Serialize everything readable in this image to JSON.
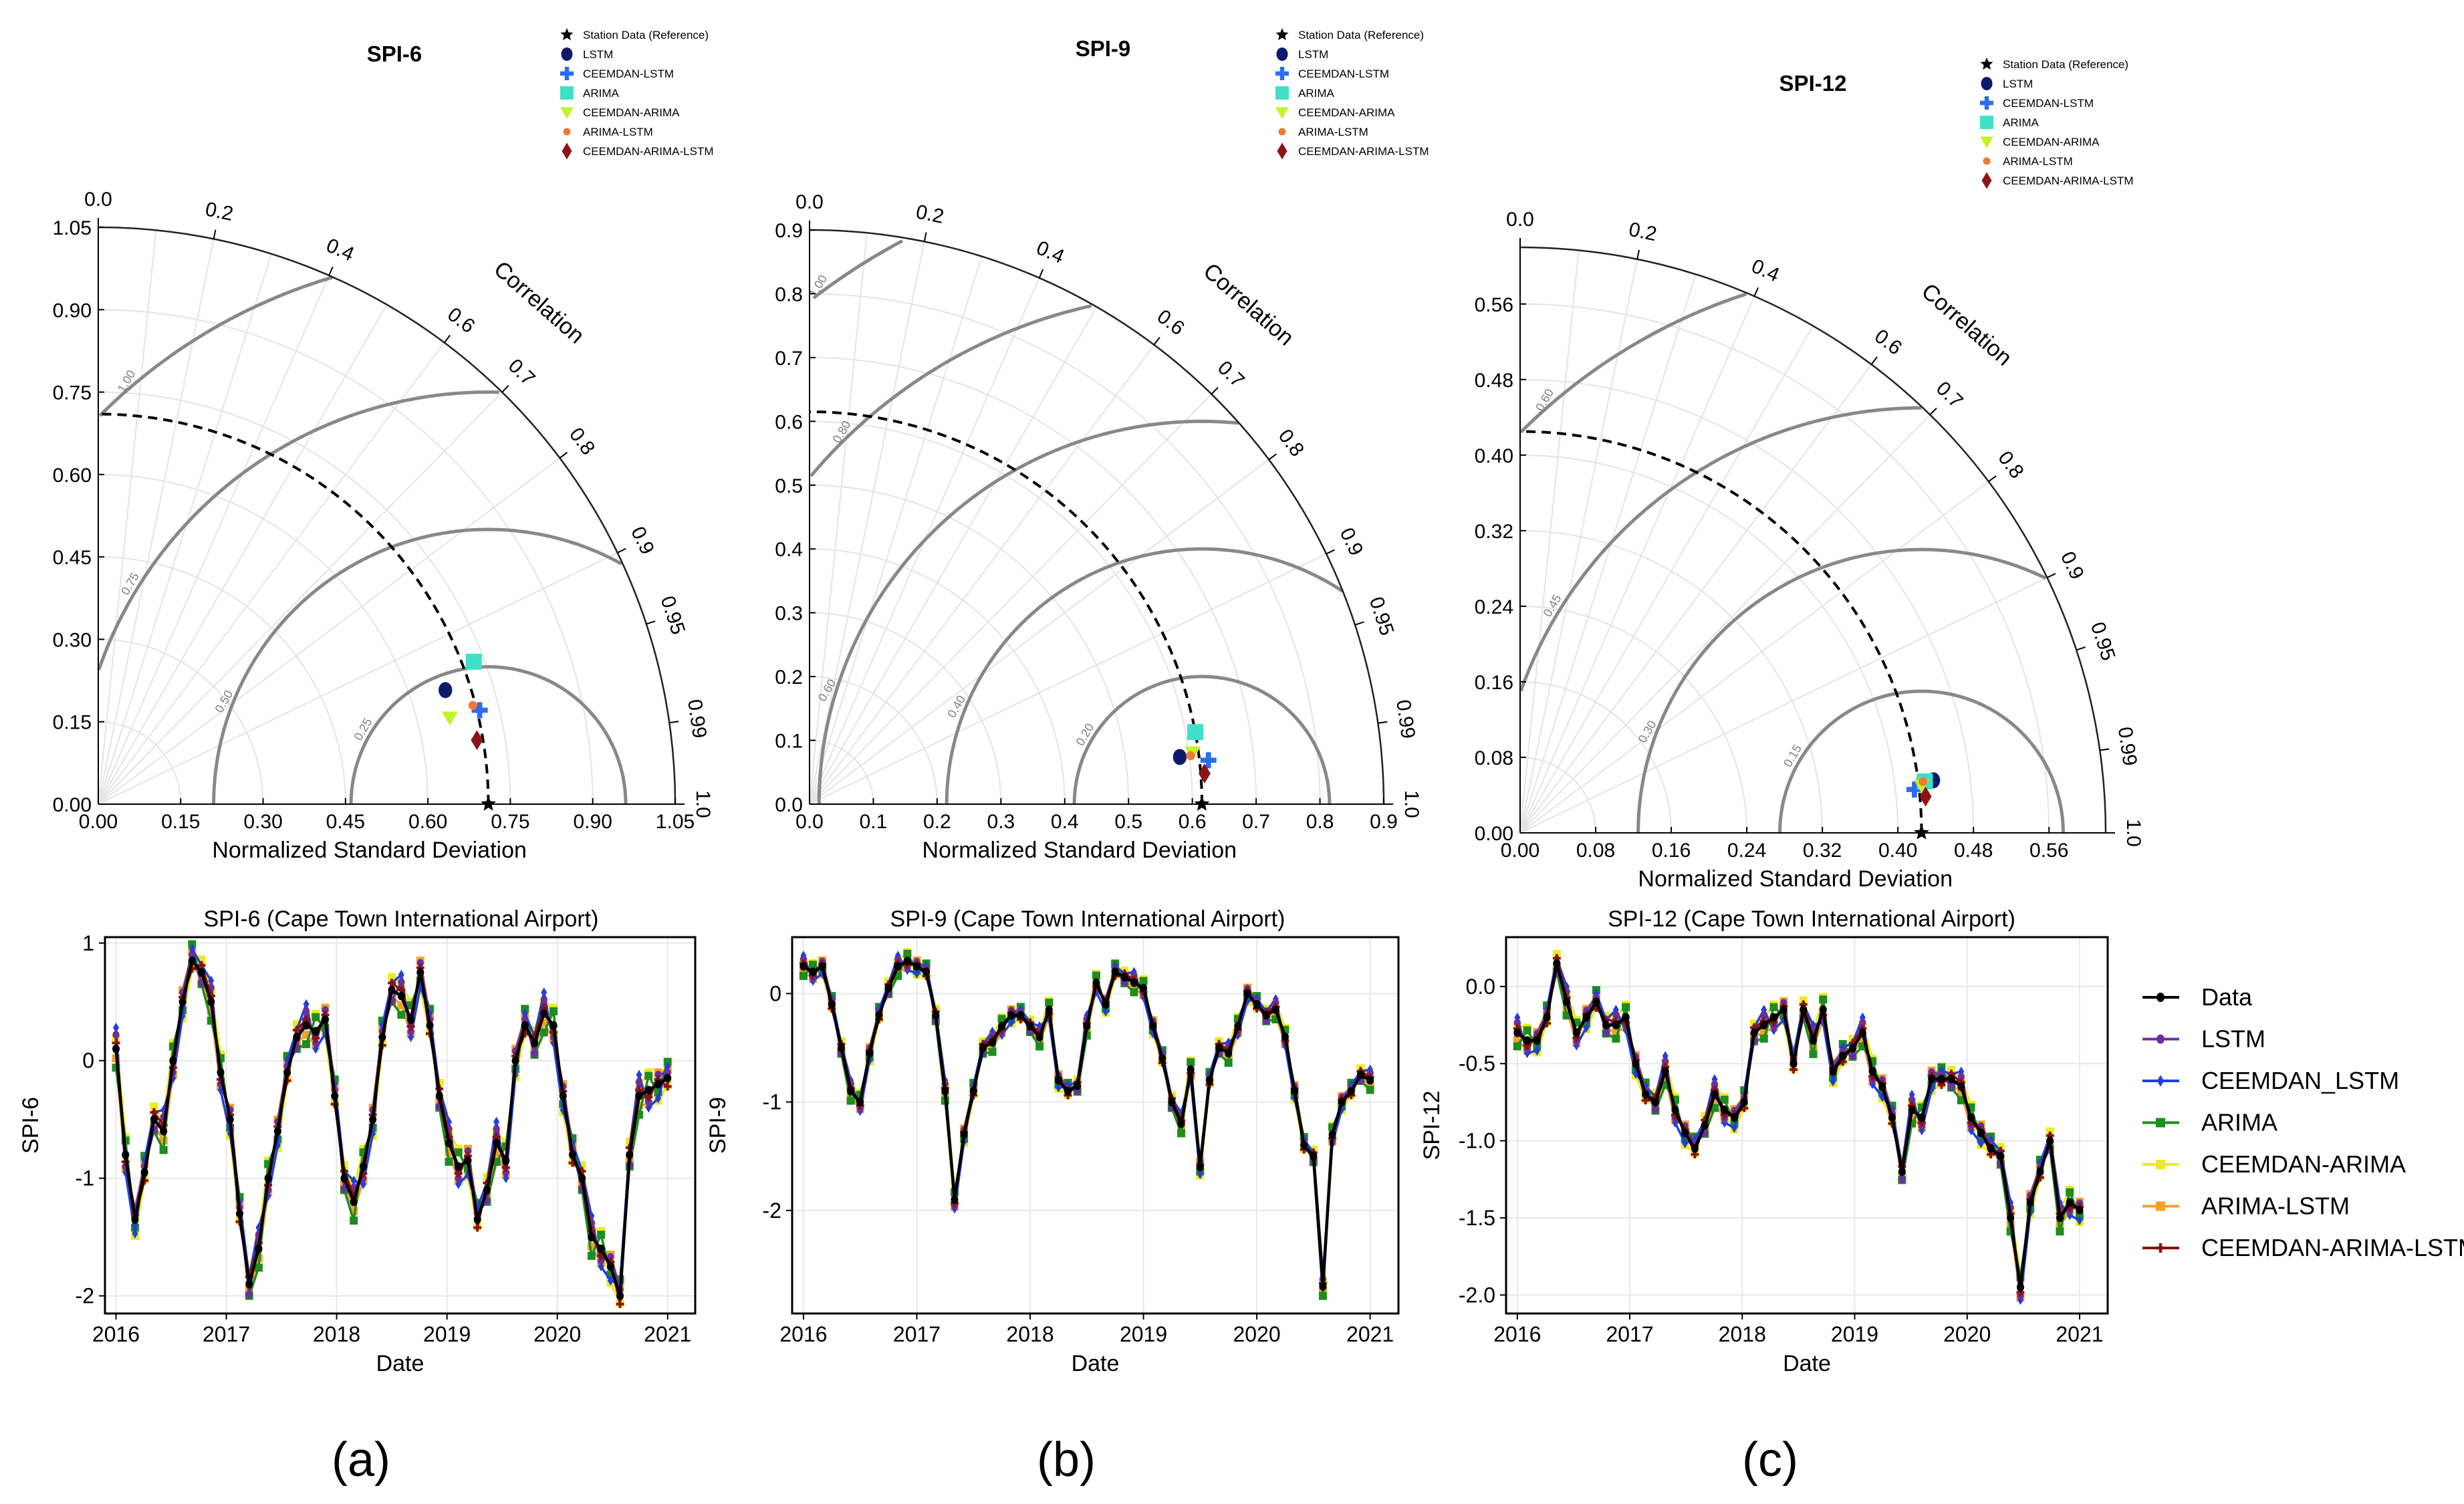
{
  "colors": {
    "Data": "#000000",
    "LSTM": "#6a2fa0",
    "CEEMDAN_LSTM": "#1f3fe0",
    "ARIMA": "#1e8c1e",
    "CEEMDAN-ARIMA": "#ecec1a",
    "ARIMA-LSTM": "#f2a22a",
    "CEEMDAN-ARIMA-LSTM": "#8b1010",
    "taylor": {
      "Station Data (Reference)": "#000000",
      "LSTM": "#0d1a6b",
      "CEEMDAN-LSTM": "#2b6cf0",
      "ARIMA": "#40e0c8",
      "CEEMDAN-ARIMA": "#c4f22a",
      "ARIMA-LSTM": "#f07a30",
      "CEEMDAN-ARIMA-LSTM": "#8b1515"
    }
  },
  "panel_labels": [
    "(a)",
    "(b)",
    "(c)"
  ],
  "taylor_legend": [
    "Station Data (Reference)",
    "LSTM",
    "CEEMDAN-LSTM",
    "ARIMA",
    "CEEMDAN-ARIMA",
    "ARIMA-LSTM",
    "CEEMDAN-ARIMA-LSTM"
  ],
  "ts_legend": [
    "Data",
    "LSTM",
    "CEEMDAN_LSTM",
    "ARIMA",
    "CEEMDAN-ARIMA",
    "ARIMA-LSTM",
    "CEEMDAN-ARIMA-LSTM"
  ],
  "chart_data": [
    {
      "type": "taylor",
      "title": "SPI-6",
      "xlabel": "Normalized Standard Deviation",
      "corr_label": "Correlation",
      "max_sd": 1.05,
      "ref_sd": 0.71,
      "sd_ticks": [
        0.0,
        0.15,
        0.3,
        0.45,
        0.6,
        0.75,
        0.9,
        1.05
      ],
      "sd_tick_labels": [
        "0.00",
        "0.15",
        "0.30",
        "0.45",
        "0.60",
        "0.75",
        "0.90",
        "1.05"
      ],
      "corr_ticks": [
        "0.0",
        "0.2",
        "0.4",
        "0.6",
        "0.7",
        "0.8",
        "0.9",
        "0.95",
        "0.99",
        "1.0"
      ],
      "rms_contours": [
        {
          "r": 0.25,
          "label": "0.25"
        },
        {
          "r": 0.5,
          "label": "0.50"
        },
        {
          "r": 0.75,
          "label": "0.75"
        },
        {
          "r": 1.0,
          "label": "1.00"
        }
      ],
      "points": [
        {
          "model": "Station Data (Reference)",
          "sd": 0.71,
          "corr": 1.0
        },
        {
          "model": "LSTM",
          "sd": 0.665,
          "corr": 0.95
        },
        {
          "model": "CEEMDAN-LSTM",
          "sd": 0.715,
          "corr": 0.971
        },
        {
          "model": "ARIMA",
          "sd": 0.731,
          "corr": 0.935
        },
        {
          "model": "CEEMDAN-ARIMA",
          "sd": 0.659,
          "corr": 0.971
        },
        {
          "model": "ARIMA-LSTM",
          "sd": 0.705,
          "corr": 0.967
        },
        {
          "model": "CEEMDAN-ARIMA-LSTM",
          "sd": 0.699,
          "corr": 0.986
        }
      ]
    },
    {
      "type": "taylor",
      "title": "SPI-9",
      "xlabel": "Normalized Standard Deviation",
      "corr_label": "Correlation",
      "max_sd": 0.9,
      "ref_sd": 0.615,
      "sd_ticks": [
        0.0,
        0.1,
        0.2,
        0.3,
        0.4,
        0.5,
        0.6,
        0.7,
        0.8,
        0.9
      ],
      "sd_tick_labels": [
        "0.0",
        "0.1",
        "0.2",
        "0.3",
        "0.4",
        "0.5",
        "0.6",
        "0.7",
        "0.8",
        "0.9"
      ],
      "corr_ticks": [
        "0.0",
        "0.2",
        "0.4",
        "0.6",
        "0.7",
        "0.8",
        "0.9",
        "0.95",
        "0.99",
        "1.0"
      ],
      "rms_contours": [
        {
          "r": 0.2,
          "label": "0.20"
        },
        {
          "r": 0.4,
          "label": "0.40"
        },
        {
          "r": 0.6,
          "label": "0.60"
        },
        {
          "r": 0.8,
          "label": "0.80"
        },
        {
          "r": 1.0,
          "label": "1.00"
        }
      ],
      "points": [
        {
          "model": "Station Data (Reference)",
          "sd": 0.615,
          "corr": 1.0
        },
        {
          "model": "LSTM",
          "sd": 0.585,
          "corr": 0.992
        },
        {
          "model": "CEEMDAN-LSTM",
          "sd": 0.629,
          "corr": 0.994
        },
        {
          "model": "ARIMA",
          "sd": 0.615,
          "corr": 0.983
        },
        {
          "model": "CEEMDAN-ARIMA",
          "sd": 0.606,
          "corr": 0.991
        },
        {
          "model": "ARIMA-LSTM",
          "sd": 0.602,
          "corr": 0.992
        },
        {
          "model": "CEEMDAN-ARIMA-LSTM",
          "sd": 0.621,
          "corr": 0.997
        }
      ]
    },
    {
      "type": "taylor",
      "title": "SPI-12",
      "xlabel": "Normalized Standard Deviation",
      "corr_label": "Correlation",
      "max_sd": 0.62,
      "ref_sd": 0.425,
      "sd_ticks": [
        0.0,
        0.08,
        0.16,
        0.24,
        0.32,
        0.4,
        0.48,
        0.56
      ],
      "sd_tick_labels": [
        "0.00",
        "0.08",
        "0.16",
        "0.24",
        "0.32",
        "0.40",
        "0.48",
        "0.56"
      ],
      "corr_ticks": [
        "0.0",
        "0.2",
        "0.4",
        "0.6",
        "0.7",
        "0.8",
        "0.9",
        "0.95",
        "0.99",
        "1.0"
      ],
      "rms_contours": [
        {
          "r": 0.15,
          "label": "0.15"
        },
        {
          "r": 0.3,
          "label": "0.30"
        },
        {
          "r": 0.45,
          "label": "0.45"
        },
        {
          "r": 0.6,
          "label": "0.60"
        }
      ],
      "points": [
        {
          "model": "Station Data (Reference)",
          "sd": 0.425,
          "corr": 1.0
        },
        {
          "model": "LSTM",
          "sd": 0.441,
          "corr": 0.992
        },
        {
          "model": "CEEMDAN-LSTM",
          "sd": 0.42,
          "corr": 0.994
        },
        {
          "model": "ARIMA",
          "sd": 0.432,
          "corr": 0.992
        },
        {
          "model": "CEEMDAN-ARIMA",
          "sd": 0.428,
          "corr": 0.993
        },
        {
          "model": "ARIMA-LSTM",
          "sd": 0.43,
          "corr": 0.992
        },
        {
          "model": "CEEMDAN-ARIMA-LSTM",
          "sd": 0.431,
          "corr": 0.996
        }
      ]
    },
    {
      "type": "line",
      "title": "SPI-6 (Cape Town International Airport)",
      "xlabel": "Date",
      "ylabel": "SPI-6",
      "xlim": [
        2015.9,
        2021.25
      ],
      "ylim": [
        -2.15,
        1.05
      ],
      "x_ticks": [
        "2016",
        "2017",
        "2018",
        "2019",
        "2020",
        "2021"
      ],
      "y_ticks": [
        "-2",
        "-1",
        "0",
        "1"
      ],
      "series_data": [
        0.1,
        -0.8,
        -1.35,
        -0.95,
        -0.5,
        -0.6,
        0.0,
        0.5,
        0.85,
        0.75,
        0.5,
        -0.1,
        -0.5,
        -1.3,
        -1.9,
        -1.6,
        -1.0,
        -0.6,
        -0.1,
        0.2,
        0.3,
        0.25,
        0.35,
        -0.3,
        -1.0,
        -1.2,
        -0.9,
        -0.5,
        0.2,
        0.6,
        0.55,
        0.35,
        0.75,
        0.3,
        -0.3,
        -0.7,
        -0.9,
        -0.85,
        -1.35,
        -1.1,
        -0.7,
        -0.85,
        0.0,
        0.3,
        0.15,
        0.4,
        0.3,
        -0.3,
        -0.8,
        -1.0,
        -1.5,
        -1.6,
        -1.75,
        -2.0,
        -0.8,
        -0.3,
        -0.25,
        -0.2,
        -0.15
      ]
    },
    {
      "type": "line",
      "title": "SPI-9 (Cape Town International Airport)",
      "xlabel": "Date",
      "ylabel": "SPI-9",
      "xlim": [
        2015.9,
        2021.25
      ],
      "ylim": [
        -2.95,
        0.52
      ],
      "x_ticks": [
        "2016",
        "2017",
        "2018",
        "2019",
        "2020",
        "2021"
      ],
      "y_ticks": [
        "-2",
        "-1",
        "0"
      ],
      "series_data": [
        0.25,
        0.2,
        0.25,
        -0.1,
        -0.5,
        -0.9,
        -1.0,
        -0.55,
        -0.2,
        0.05,
        0.25,
        0.3,
        0.25,
        0.2,
        -0.2,
        -0.9,
        -1.9,
        -1.3,
        -0.9,
        -0.5,
        -0.45,
        -0.3,
        -0.2,
        -0.2,
        -0.3,
        -0.4,
        -0.15,
        -0.8,
        -0.9,
        -0.85,
        -0.3,
        0.1,
        -0.1,
        0.2,
        0.15,
        0.1,
        0.05,
        -0.3,
        -0.6,
        -1.0,
        -1.2,
        -0.7,
        -1.6,
        -0.8,
        -0.5,
        -0.55,
        -0.3,
        0.0,
        -0.1,
        -0.2,
        -0.15,
        -0.4,
        -0.9,
        -1.4,
        -1.5,
        -2.7,
        -1.3,
        -1.0,
        -0.9,
        -0.75,
        -0.8
      ]
    },
    {
      "type": "line",
      "title": "SPI-12 (Cape Town International Airport)",
      "xlabel": "Date",
      "ylabel": "SPI-12",
      "xlim": [
        2015.9,
        2021.25
      ],
      "ylim": [
        -2.12,
        0.32
      ],
      "x_ticks": [
        "2016",
        "2017",
        "2018",
        "2019",
        "2020",
        "2021"
      ],
      "y_ticks": [
        "-2.0",
        "-1.5",
        "-1.0",
        "-0.5",
        "0.0"
      ],
      "series_data": [
        -0.3,
        -0.35,
        -0.35,
        -0.2,
        0.15,
        -0.1,
        -0.3,
        -0.2,
        -0.1,
        -0.25,
        -0.25,
        -0.2,
        -0.5,
        -0.7,
        -0.75,
        -0.55,
        -0.8,
        -0.95,
        -1.05,
        -0.9,
        -0.7,
        -0.8,
        -0.85,
        -0.75,
        -0.3,
        -0.25,
        -0.2,
        -0.15,
        -0.5,
        -0.15,
        -0.35,
        -0.15,
        -0.55,
        -0.45,
        -0.4,
        -0.3,
        -0.55,
        -0.65,
        -0.85,
        -1.2,
        -0.8,
        -0.85,
        -0.6,
        -0.6,
        -0.6,
        -0.65,
        -0.85,
        -0.95,
        -1.05,
        -1.1,
        -1.5,
        -1.95,
        -1.4,
        -1.2,
        -1.0,
        -1.5,
        -1.4,
        -1.45
      ]
    }
  ]
}
